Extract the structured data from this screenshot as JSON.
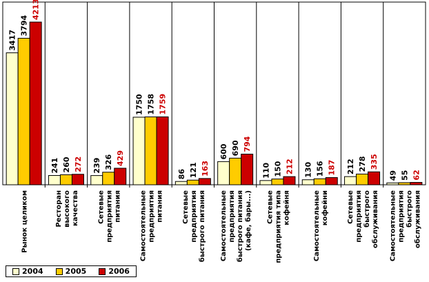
{
  "chart_data": {
    "type": "bar",
    "categories": [
      "Рынок целиком",
      "Ресторан высокого качества",
      "Сетевые предприятия питания",
      "Самостоятельные предприятия питания",
      "Сетевые предприятия быстрого питания",
      "Самостоятельные предприятия быстрого питания (кафе, бары...)",
      "Сетевые предприятия типа кофейня",
      "Самостоятельные кофейни",
      "Сетевые предприятия быстрого обслуживания",
      "Самостоятельные предприятия быстрого обслуживания"
    ],
    "category_lines": [
      [
        "Рынок целиком"
      ],
      [
        "Ресторан",
        "высокого",
        "качества"
      ],
      [
        "Сетевые",
        "предприятия",
        "питания"
      ],
      [
        "Самостоятельные",
        "предприятия",
        "питания"
      ],
      [
        "Сетевые",
        "предприятия",
        "быстрого питания"
      ],
      [
        "Самостоятельные",
        "предприятия",
        "быстрого питания",
        "(кафе, бары...)"
      ],
      [
        "Сетевые",
        "предприятия типа",
        "кофейня"
      ],
      [
        "Самостоятельные",
        "кофейни"
      ],
      [
        "Сетевые",
        "предприятия",
        "быстрого",
        "обслуживания"
      ],
      [
        "Самостоятельные",
        "предприятия",
        "быстрого",
        "обслуживания"
      ]
    ],
    "series": [
      {
        "name": "2004",
        "color": "#FFFFCC",
        "label_color": "#000000",
        "values": [
          3417,
          241,
          239,
          1750,
          86,
          600,
          110,
          130,
          212,
          49
        ]
      },
      {
        "name": "2005",
        "color": "#FFCC00",
        "label_color": "#000000",
        "values": [
          3794,
          260,
          326,
          1758,
          121,
          690,
          150,
          156,
          278,
          55
        ]
      },
      {
        "name": "2006",
        "color": "#CC0000",
        "label_color": "#CC0000",
        "values": [
          4213,
          272,
          429,
          1759,
          163,
          794,
          212,
          187,
          335,
          62
        ]
      }
    ],
    "ylim": [
      0,
      4213
    ],
    "legend_position": "bottom-left",
    "grid": false
  }
}
